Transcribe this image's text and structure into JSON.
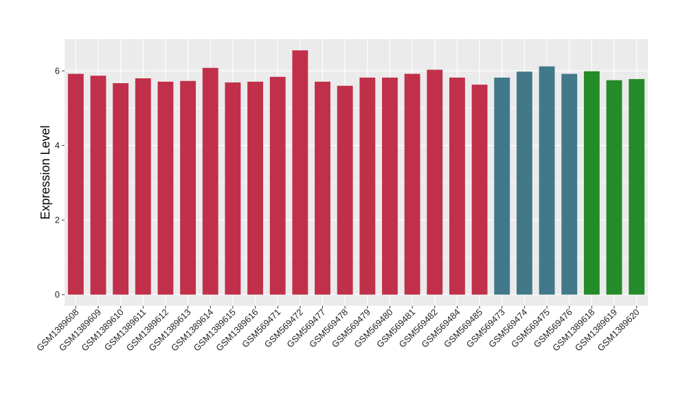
{
  "chart_data": {
    "type": "bar",
    "title": "",
    "xlabel": "",
    "ylabel": "Expression Level",
    "ylim": [
      -0.3,
      6.85
    ],
    "yticks": [
      0,
      2,
      4,
      6
    ],
    "grid": true,
    "legend": "none",
    "categories": [
      "GSM1389608",
      "GSM1389609",
      "GSM1389610",
      "GSM1389611",
      "GSM1389612",
      "GSM1389613",
      "GSM1389614",
      "GSM1389615",
      "GSM1389616",
      "GSM569471",
      "GSM569472",
      "GSM569477",
      "GSM569478",
      "GSM569479",
      "GSM569480",
      "GSM569481",
      "GSM569482",
      "GSM569484",
      "GSM569485",
      "GSM569473",
      "GSM569474",
      "GSM569475",
      "GSM569476",
      "GSM1389618",
      "GSM1389619",
      "GSM1389620"
    ],
    "values": [
      5.92,
      5.87,
      5.67,
      5.8,
      5.71,
      5.73,
      6.08,
      5.69,
      5.71,
      5.84,
      6.55,
      5.71,
      5.6,
      5.82,
      5.82,
      5.92,
      6.03,
      5.82,
      5.63,
      5.82,
      5.98,
      6.12,
      5.92,
      5.99,
      5.75,
      5.78
    ],
    "bar_colors": [
      "#c1304a",
      "#c1304a",
      "#c1304a",
      "#c1304a",
      "#c1304a",
      "#c1304a",
      "#c1304a",
      "#c1304a",
      "#c1304a",
      "#c1304a",
      "#c1304a",
      "#c1304a",
      "#c1304a",
      "#c1304a",
      "#c1304a",
      "#c1304a",
      "#c1304a",
      "#c1304a",
      "#c1304a",
      "#41788a",
      "#41788a",
      "#41788a",
      "#41788a",
      "#238b28",
      "#238b28",
      "#238b28"
    ],
    "panel_background": "#ebebeb",
    "grid_color": "#ffffff"
  }
}
